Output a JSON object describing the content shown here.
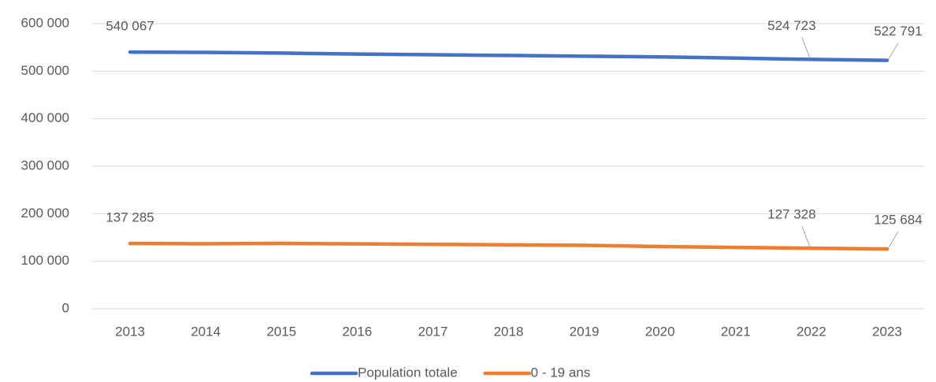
{
  "chart_data": {
    "type": "line",
    "categories": [
      "2013",
      "2014",
      "2015",
      "2016",
      "2017",
      "2018",
      "2019",
      "2020",
      "2021",
      "2022",
      "2023"
    ],
    "series": [
      {
        "name": "Population totale",
        "color": "#4472c4",
        "values": [
          540067,
          539500,
          538000,
          536000,
          534500,
          533000,
          531500,
          530000,
          527500,
          524723,
          522791
        ],
        "value_labels": [
          "540 067",
          null,
          null,
          null,
          null,
          null,
          null,
          null,
          null,
          "524 723",
          "522 791"
        ]
      },
      {
        "name": "0 - 19 ans",
        "color": "#ed7d31",
        "values": [
          137285,
          136800,
          137500,
          136500,
          135500,
          134500,
          133500,
          131000,
          129000,
          127328,
          125684
        ],
        "value_labels": [
          "137 285",
          null,
          null,
          null,
          null,
          null,
          null,
          null,
          null,
          "127 328",
          "125 684"
        ]
      }
    ],
    "ylim": [
      0,
      600000
    ],
    "yticks": [
      0,
      {
        "value": 100000,
        "label": "100 000"
      },
      {
        "value": 200000,
        "label": "200 000"
      },
      {
        "value": 300000,
        "label": "300 000"
      },
      {
        "value": 400000,
        "label": "400 000"
      },
      {
        "value": 500000,
        "label": "500 000"
      },
      {
        "value": 600000,
        "label": "600 000"
      }
    ],
    "grid": true,
    "legend": "bottom"
  }
}
